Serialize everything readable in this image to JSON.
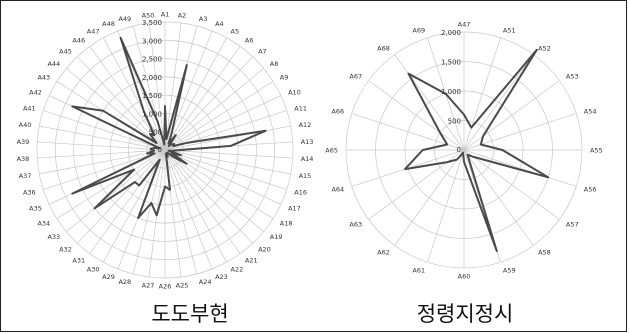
{
  "chart_data": [
    {
      "type": "radar",
      "caption": "도도부현",
      "ticks": [
        "500",
        "1,000",
        "1,500",
        "2,000",
        "2,500",
        "3,000",
        "3,500"
      ],
      "rmax": 3500,
      "categories": [
        "A1",
        "A2",
        "A3",
        "A4",
        "A5",
        "A6",
        "A7",
        "A8",
        "A9",
        "A10",
        "A11",
        "A12",
        "A13",
        "A14",
        "A15",
        "A16",
        "A17",
        "A18",
        "A19",
        "A20",
        "A21",
        "A22",
        "A23",
        "A24",
        "A25",
        "A26",
        "A27",
        "A28",
        "A29",
        "A30",
        "A31",
        "A32",
        "A33",
        "A34",
        "A35",
        "A36",
        "A37",
        "A38",
        "A39",
        "A40",
        "A41",
        "A42",
        "A43",
        "A44",
        "A45",
        "A46",
        "A47",
        "A48",
        "A49",
        "A50"
      ],
      "values": [
        1200,
        300,
        2400,
        500,
        200,
        500,
        150,
        250,
        300,
        250,
        650,
        2800,
        1800,
        250,
        100,
        450,
        200,
        700,
        300,
        100,
        100,
        100,
        200,
        100,
        1100,
        1000,
        1800,
        1500,
        2000,
        300,
        1200,
        1200,
        2500,
        1000,
        2800,
        300,
        500,
        300,
        400,
        300,
        150,
        2800,
        2000,
        300,
        600,
        500,
        1200,
        3300,
        800,
        150
      ]
    },
    {
      "type": "radar",
      "caption": "정령지정시",
      "ticks": [
        "500",
        "1,000",
        "1,500",
        "2,000"
      ],
      "rmax": 2000,
      "categories": [
        "A47",
        "A51",
        "A52",
        "A53",
        "A54",
        "A55",
        "A56",
        "A57",
        "A58",
        "A59",
        "A60",
        "A61",
        "A62",
        "A63",
        "A64",
        "A65",
        "A66",
        "A67",
        "A68",
        "A69"
      ],
      "values": [
        600,
        400,
        2100,
        400,
        300,
        650,
        1500,
        200,
        100,
        1800,
        200,
        50,
        200,
        350,
        1050,
        700,
        300,
        500,
        1600,
        1000
      ]
    }
  ]
}
